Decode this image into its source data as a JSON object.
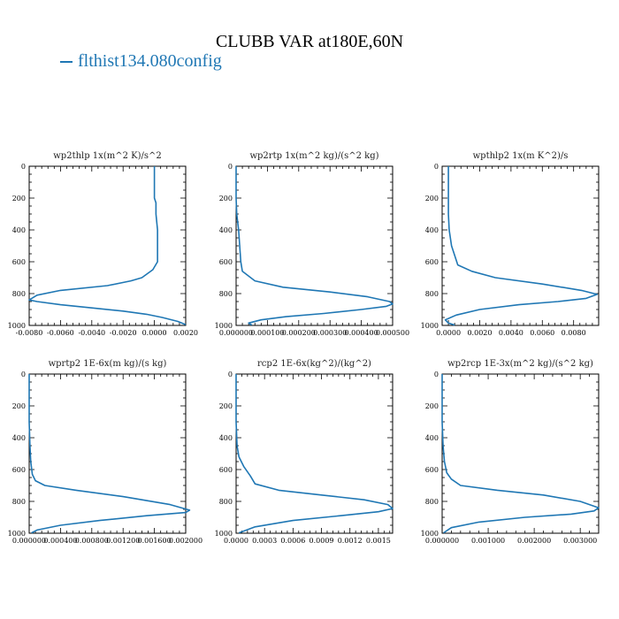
{
  "figure": {
    "title": "CLUBB VAR at180E,60N",
    "legend_label": "flthist134.080config",
    "line_color": "#1f77b4"
  },
  "chart_data": [
    {
      "type": "line",
      "title": "wp2thlp   1x(m^2 K)/s^2",
      "xlim": [
        -0.008,
        0.002
      ],
      "ylim": [
        1000,
        0
      ],
      "xticks": [
        "-0.0080",
        "-0.0060",
        "-0.0040",
        "-0.0020",
        "0.0000",
        "0.0020"
      ],
      "xtick_values": [
        -0.008,
        -0.006,
        -0.004,
        -0.002,
        0.0,
        0.002
      ],
      "yticks": [
        0,
        200,
        400,
        600,
        800,
        1000
      ],
      "series": [
        {
          "x": [
            0.0,
            0.0,
            0.0,
            0.0001,
            0.0001,
            0.0002,
            0.0002,
            -0.0001,
            -0.0008,
            -0.0015,
            -0.003,
            -0.006,
            -0.0075,
            -0.008,
            -0.0075,
            -0.006,
            -0.004,
            -0.002,
            -0.0005,
            0.0005,
            0.0015,
            0.002
          ],
          "y": [
            0,
            100,
            200,
            230,
            300,
            400,
            600,
            650,
            700,
            720,
            750,
            780,
            810,
            840,
            850,
            870,
            890,
            910,
            930,
            950,
            975,
            995
          ]
        }
      ]
    },
    {
      "type": "line",
      "title": "wp2rtp   1x(m^2 kg)/(s^2 kg)",
      "xlim": [
        0.0,
        0.0005
      ],
      "ylim": [
        1000,
        0
      ],
      "xticks": [
        "0.000000",
        "0.000100",
        "0.000200",
        "0.000300",
        "0.000400",
        "0.000500"
      ],
      "xtick_values": [
        0.0,
        0.0001,
        0.0002,
        0.0003,
        0.0004,
        0.0005
      ],
      "yticks": [
        0,
        200,
        400,
        600,
        800,
        1000
      ],
      "series": [
        {
          "x": [
            0.0,
            0.0,
            2e-06,
            8e-06,
            1.5e-05,
            2e-05,
            6e-05,
            0.00015,
            0.0003,
            0.00042,
            0.00049,
            0.0005,
            0.00048,
            0.0004,
            0.00028,
            0.00016,
            8e-05,
            4e-05,
            5e-05
          ],
          "y": [
            0,
            200,
            300,
            400,
            600,
            660,
            720,
            760,
            790,
            820,
            850,
            865,
            880,
            900,
            925,
            945,
            965,
            985,
            998
          ]
        }
      ]
    },
    {
      "type": "line",
      "title": "wpthlp2   1x(m K^2)/s",
      "xlim": [
        -0.0004,
        0.0096
      ],
      "ylim": [
        1000,
        0
      ],
      "xticks": [
        "0.0000",
        "0.0020",
        "0.0040",
        "0.0060",
        "0.0080"
      ],
      "xtick_values": [
        0.0,
        0.002,
        0.004,
        0.006,
        0.008
      ],
      "yticks": [
        0,
        200,
        400,
        600,
        800,
        1000
      ],
      "series": [
        {
          "x": [
            0.0,
            0.0,
            5e-05,
            0.0002,
            0.0006,
            0.0015,
            0.003,
            0.006,
            0.0085,
            0.0095,
            0.0088,
            0.007,
            0.0045,
            0.002,
            0.0005,
            -0.0002,
            0.0,
            0.0004
          ],
          "y": [
            0,
            300,
            400,
            500,
            620,
            660,
            700,
            740,
            780,
            805,
            830,
            850,
            870,
            900,
            935,
            965,
            985,
            998
          ]
        }
      ]
    },
    {
      "type": "line",
      "title": "wprtp2   1E-6x(m kg)/(s kg)",
      "xlim": [
        0.0,
        0.002
      ],
      "ylim": [
        1000,
        0
      ],
      "xticks": [
        "0.000000",
        "0.000400",
        "0.000800",
        "0.001200",
        "0.001600",
        "0.002000"
      ],
      "xtick_values": [
        0.0,
        0.0004,
        0.0008,
        0.0012,
        0.0016,
        0.002
      ],
      "yticks": [
        0,
        200,
        400,
        600,
        800,
        1000
      ],
      "series": [
        {
          "x": [
            0.0,
            0.0,
            1e-05,
            2e-05,
            4e-05,
            8e-05,
            0.0002,
            0.0006,
            0.0012,
            0.0018,
            0.00205,
            0.002,
            0.0015,
            0.0009,
            0.0004,
            0.0001,
            3e-05
          ],
          "y": [
            0,
            300,
            450,
            550,
            630,
            670,
            700,
            730,
            770,
            820,
            855,
            870,
            890,
            920,
            950,
            980,
            998
          ]
        }
      ]
    },
    {
      "type": "line",
      "title": "rcp2   1E-6x(kg^2)/(kg^2)",
      "xlim": [
        0.0,
        0.00165
      ],
      "ylim": [
        1000,
        0
      ],
      "xticks": [
        "0.0000",
        "0.0003",
        "0.0006",
        "0.0009",
        "0.0012",
        "0.0015"
      ],
      "xtick_values": [
        0.0,
        0.0003,
        0.0006,
        0.0009,
        0.0012,
        0.0015
      ],
      "yticks": [
        0,
        200,
        400,
        600,
        800,
        1000
      ],
      "series": [
        {
          "x": [
            0.0,
            0.0,
            1e-05,
            3e-05,
            8e-05,
            0.00015,
            0.0002,
            0.00045,
            0.0009,
            0.00135,
            0.0016,
            0.00165,
            0.0015,
            0.0011,
            0.0006,
            0.0002,
            3e-05
          ],
          "y": [
            0,
            300,
            450,
            520,
            580,
            640,
            690,
            730,
            760,
            790,
            820,
            845,
            865,
            890,
            920,
            960,
            998
          ]
        }
      ]
    },
    {
      "type": "line",
      "title": "wp2rcp   1E-3x(m^2 kg)/(s^2 kg)",
      "xlim": [
        0.0,
        0.0034
      ],
      "ylim": [
        1000,
        0
      ],
      "xticks": [
        "0.000000",
        "0.001000",
        "0.002000",
        "0.003000"
      ],
      "xtick_values": [
        0.0,
        0.001,
        0.002,
        0.003
      ],
      "yticks": [
        0,
        200,
        400,
        600,
        800,
        1000
      ],
      "series": [
        {
          "x": [
            0.0,
            0.0,
            2e-05,
            5e-05,
            0.0001,
            0.0002,
            0.0004,
            0.0012,
            0.0022,
            0.003,
            0.0034,
            0.0033,
            0.0028,
            0.0018,
            0.0008,
            0.0002,
            3e-05
          ],
          "y": [
            0,
            300,
            450,
            550,
            620,
            660,
            700,
            730,
            760,
            800,
            840,
            860,
            880,
            900,
            930,
            965,
            998
          ]
        }
      ]
    }
  ]
}
